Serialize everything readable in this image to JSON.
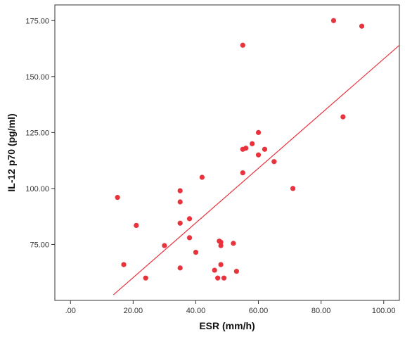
{
  "chart_data": {
    "type": "scatter",
    "xlabel": "ESR (mm/h)",
    "ylabel": "IL-12 p70 (pg/ml)",
    "xlim": [
      -5,
      105
    ],
    "ylim": [
      50,
      182
    ],
    "x_ticks": [
      ".00",
      "20.00",
      "40.00",
      "60.00",
      "80.00",
      "100.00"
    ],
    "y_ticks": [
      "75.00",
      "100.00",
      "125.00",
      "150.00",
      "175.00"
    ],
    "grid": false,
    "legend": "none",
    "point_color": "#e8323c",
    "line_color": "#e8323c",
    "points": [
      {
        "x": 15,
        "y": 96
      },
      {
        "x": 17,
        "y": 66
      },
      {
        "x": 21,
        "y": 83.5
      },
      {
        "x": 24,
        "y": 60
      },
      {
        "x": 30,
        "y": 74.5
      },
      {
        "x": 35,
        "y": 99
      },
      {
        "x": 35,
        "y": 94
      },
      {
        "x": 35,
        "y": 84.5
      },
      {
        "x": 35,
        "y": 64.5
      },
      {
        "x": 38,
        "y": 86.5
      },
      {
        "x": 38,
        "y": 78
      },
      {
        "x": 40,
        "y": 71.5
      },
      {
        "x": 42,
        "y": 105
      },
      {
        "x": 46,
        "y": 63.5
      },
      {
        "x": 47,
        "y": 60
      },
      {
        "x": 47.5,
        "y": 76.5
      },
      {
        "x": 48,
        "y": 76
      },
      {
        "x": 48,
        "y": 74.5
      },
      {
        "x": 48,
        "y": 66
      },
      {
        "x": 49,
        "y": 60
      },
      {
        "x": 52,
        "y": 75.5
      },
      {
        "x": 53,
        "y": 63
      },
      {
        "x": 55,
        "y": 164
      },
      {
        "x": 55,
        "y": 117.5
      },
      {
        "x": 55,
        "y": 107
      },
      {
        "x": 56,
        "y": 118
      },
      {
        "x": 58,
        "y": 120
      },
      {
        "x": 60,
        "y": 125
      },
      {
        "x": 60,
        "y": 115
      },
      {
        "x": 62,
        "y": 117.5
      },
      {
        "x": 65,
        "y": 112
      },
      {
        "x": 71,
        "y": 100
      },
      {
        "x": 84,
        "y": 175
      },
      {
        "x": 87,
        "y": 132
      },
      {
        "x": 93,
        "y": 172.5
      }
    ],
    "fit_line": {
      "x": [
        13.7,
        105
      ],
      "y": [
        52.5,
        164
      ]
    }
  }
}
